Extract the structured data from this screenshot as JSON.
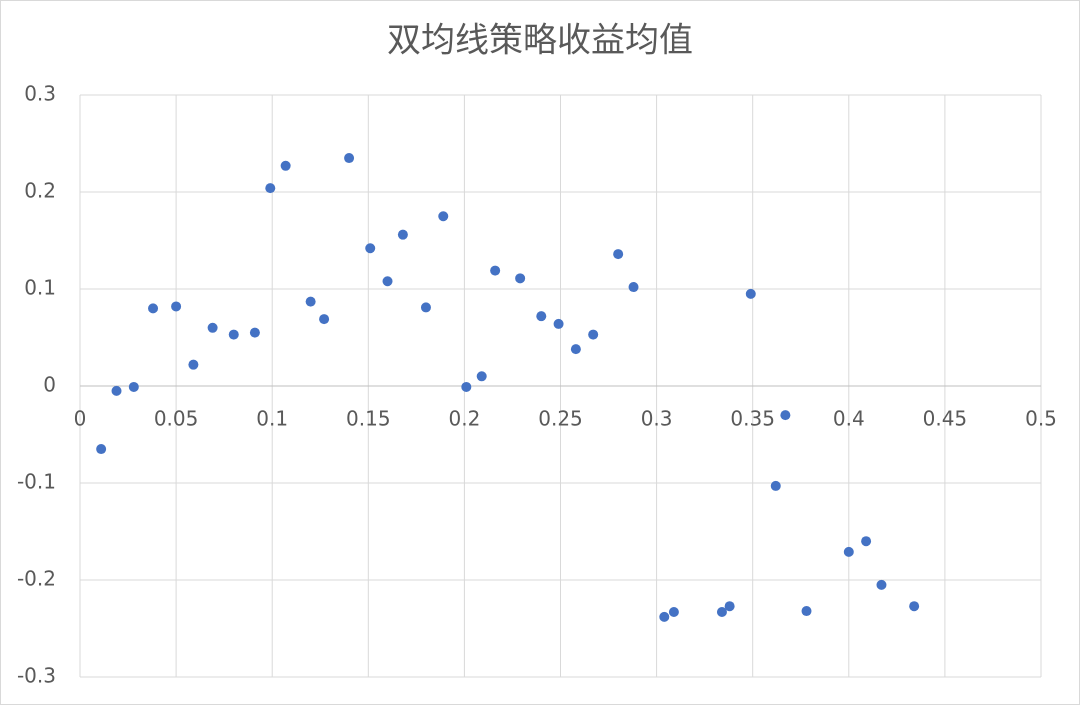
{
  "chart_data": {
    "type": "scatter",
    "title": "双均线策略收益均值",
    "color": "#4472c4",
    "grid": true,
    "x": [
      0.011,
      0.019,
      0.028,
      0.038,
      0.05,
      0.059,
      0.069,
      0.08,
      0.091,
      0.099,
      0.107,
      0.12,
      0.127,
      0.14,
      0.151,
      0.16,
      0.168,
      0.18,
      0.189,
      0.201,
      0.209,
      0.216,
      0.229,
      0.24,
      0.249,
      0.258,
      0.267,
      0.28,
      0.288,
      0.304,
      0.309,
      0.334,
      0.338,
      0.349,
      0.362,
      0.367,
      0.378,
      0.4,
      0.409,
      0.417,
      0.434
    ],
    "values": [
      -0.065,
      -0.005,
      -0.001,
      0.08,
      0.082,
      0.022,
      0.06,
      0.053,
      0.055,
      0.204,
      0.227,
      0.087,
      0.069,
      0.235,
      0.142,
      0.108,
      0.156,
      0.081,
      0.175,
      -0.001,
      0.01,
      0.119,
      0.111,
      0.072,
      0.064,
      0.038,
      0.053,
      0.136,
      0.102,
      -0.238,
      -0.233,
      -0.233,
      -0.227,
      0.095,
      -0.103,
      -0.03,
      -0.232,
      -0.171,
      -0.16,
      -0.205,
      -0.227
    ],
    "xlim": [
      0,
      0.5
    ],
    "xticks": [
      0,
      0.05,
      0.1,
      0.15,
      0.2,
      0.25,
      0.3,
      0.35,
      0.4,
      0.45,
      0.5
    ],
    "ylim": [
      -0.3,
      0.3
    ],
    "yticks": [
      -0.3,
      -0.2,
      -0.1,
      0,
      0.1,
      0.2,
      0.3
    ]
  }
}
